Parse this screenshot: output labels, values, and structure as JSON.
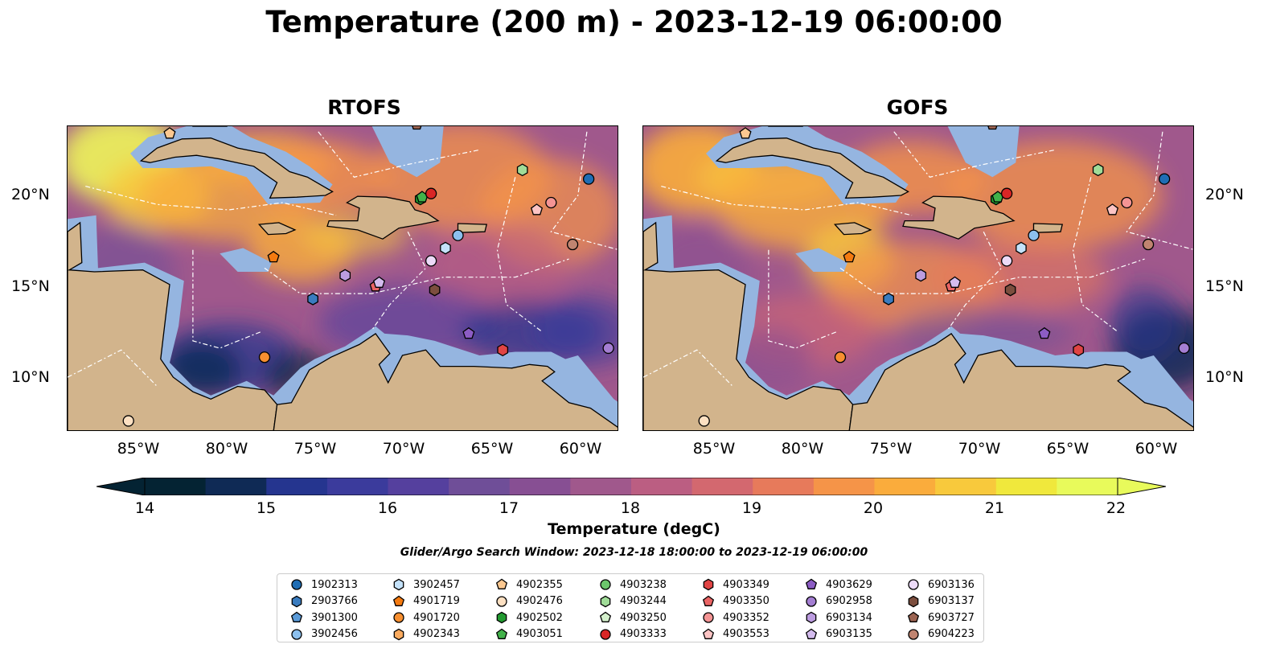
{
  "title": "Temperature (200 m) - 2023-12-19 06:00:00",
  "panels": [
    {
      "title": "RTOFS"
    },
    {
      "title": "GOFS"
    }
  ],
  "lat_labels": [
    "20°N",
    "15°N",
    "10°N"
  ],
  "lon_labels": [
    "85°W",
    "80°W",
    "75°W",
    "70°W",
    "65°W",
    "60°W"
  ],
  "colorbar": {
    "label": "Temperature (degC)",
    "ticks": [
      "14",
      "15",
      "16",
      "17",
      "18",
      "19",
      "20",
      "21",
      "22"
    ],
    "min": 14,
    "max": 22,
    "extend": "both",
    "colormap": "thermal",
    "colors": [
      "#042333",
      "#0f2a55",
      "#25358f",
      "#3b3b9c",
      "#55409e",
      "#6f4e98",
      "#874f93",
      "#a0588c",
      "#bb5e82",
      "#d3686f",
      "#e77a5b",
      "#f59448",
      "#faac3c",
      "#f8c93c",
      "#f0e83c",
      "#e8fa5b"
    ]
  },
  "search_window": "Glider/Argo Search Window: 2023-12-18 18:00:00 to 2023-12-19 06:00:00",
  "legend": [
    {
      "label": "1902313",
      "shape": "circle",
      "color": "#1f6db4"
    },
    {
      "label": "2903766",
      "shape": "hexagon",
      "color": "#3a7cbf"
    },
    {
      "label": "3901300",
      "shape": "pentagon",
      "color": "#5a9ad8"
    },
    {
      "label": "3902456",
      "shape": "circle",
      "color": "#8cc0ee"
    },
    {
      "label": "3902457",
      "shape": "hexagon",
      "color": "#c4e2fa"
    },
    {
      "label": "4901719",
      "shape": "pentagon",
      "color": "#f47a10"
    },
    {
      "label": "4901720",
      "shape": "circle",
      "color": "#f78f30"
    },
    {
      "label": "4902343",
      "shape": "hexagon",
      "color": "#fbab5f"
    },
    {
      "label": "4902355",
      "shape": "pentagon",
      "color": "#fcc890"
    },
    {
      "label": "4902476",
      "shape": "circle",
      "color": "#fde0c2"
    },
    {
      "label": "4902502",
      "shape": "hexagon",
      "color": "#229a30"
    },
    {
      "label": "4903051",
      "shape": "pentagon",
      "color": "#42b24a"
    },
    {
      "label": "4903238",
      "shape": "circle",
      "color": "#6cc66c"
    },
    {
      "label": "4903244",
      "shape": "hexagon",
      "color": "#a0dc98"
    },
    {
      "label": "4903250",
      "shape": "pentagon",
      "color": "#d4f0cc"
    },
    {
      "label": "4903333",
      "shape": "circle",
      "color": "#d92626"
    },
    {
      "label": "4903349",
      "shape": "hexagon",
      "color": "#e04444"
    },
    {
      "label": "4903350",
      "shape": "pentagon",
      "color": "#ea6464"
    },
    {
      "label": "4903352",
      "shape": "circle",
      "color": "#f49494"
    },
    {
      "label": "4903553",
      "shape": "pentagon",
      "color": "#fcc4c4"
    },
    {
      "label": "4903629",
      "shape": "pentagon",
      "color": "#8c5cc4"
    },
    {
      "label": "6902958",
      "shape": "circle",
      "color": "#a47ed2"
    },
    {
      "label": "6903134",
      "shape": "hexagon",
      "color": "#bc9ce0"
    },
    {
      "label": "6903135",
      "shape": "pentagon",
      "color": "#d4bcee"
    },
    {
      "label": "6903136",
      "shape": "circle",
      "color": "#ecdaf8"
    },
    {
      "label": "6903137",
      "shape": "hexagon",
      "color": "#7c4e3e"
    },
    {
      "label": "6903727",
      "shape": "pentagon",
      "color": "#9c6452"
    },
    {
      "label": "6904223",
      "shape": "circle",
      "color": "#c08470"
    }
  ],
  "observations": [
    {
      "id": "1902313",
      "lon": -59.9,
      "lat": 20.9
    },
    {
      "id": "2903766",
      "lon": -75.3,
      "lat": 14.3
    },
    {
      "id": "3902456",
      "lon": -67.2,
      "lat": 17.8
    },
    {
      "id": "3902457",
      "lon": -67.9,
      "lat": 17.1
    },
    {
      "id": "4901719",
      "lon": -77.5,
      "lat": 16.6
    },
    {
      "id": "4901720",
      "lon": -78.0,
      "lat": 11.1
    },
    {
      "id": "4902355",
      "lon": -83.3,
      "lat": 23.4
    },
    {
      "id": "4902476",
      "lon": -85.6,
      "lat": 7.6
    },
    {
      "id": "4902502",
      "lon": -69.3,
      "lat": 19.8
    },
    {
      "id": "4903051",
      "lon": -69.2,
      "lat": 19.9
    },
    {
      "id": "4903244",
      "lon": -63.6,
      "lat": 21.4
    },
    {
      "id": "4903333",
      "lon": -68.7,
      "lat": 20.1
    },
    {
      "id": "4903349",
      "lon": -64.7,
      "lat": 11.5
    },
    {
      "id": "4903350",
      "lon": -71.8,
      "lat": 15.0
    },
    {
      "id": "4903352",
      "lon": -62.0,
      "lat": 19.6
    },
    {
      "id": "4903553",
      "lon": -62.8,
      "lat": 19.2
    },
    {
      "id": "4903629",
      "lon": -66.6,
      "lat": 12.4
    },
    {
      "id": "6903134",
      "lon": -73.5,
      "lat": 15.6
    },
    {
      "id": "6903135",
      "lon": -71.6,
      "lat": 15.2
    },
    {
      "id": "6903136",
      "lon": -68.7,
      "lat": 16.4
    },
    {
      "id": "6903137",
      "lon": -68.5,
      "lat": 14.8
    },
    {
      "id": "6903727",
      "lon": -69.5,
      "lat": 23.9
    },
    {
      "id": "6904223",
      "lon": -60.8,
      "lat": 17.3
    },
    {
      "id": "6902958",
      "lon": -58.8,
      "lat": 11.6
    }
  ]
}
